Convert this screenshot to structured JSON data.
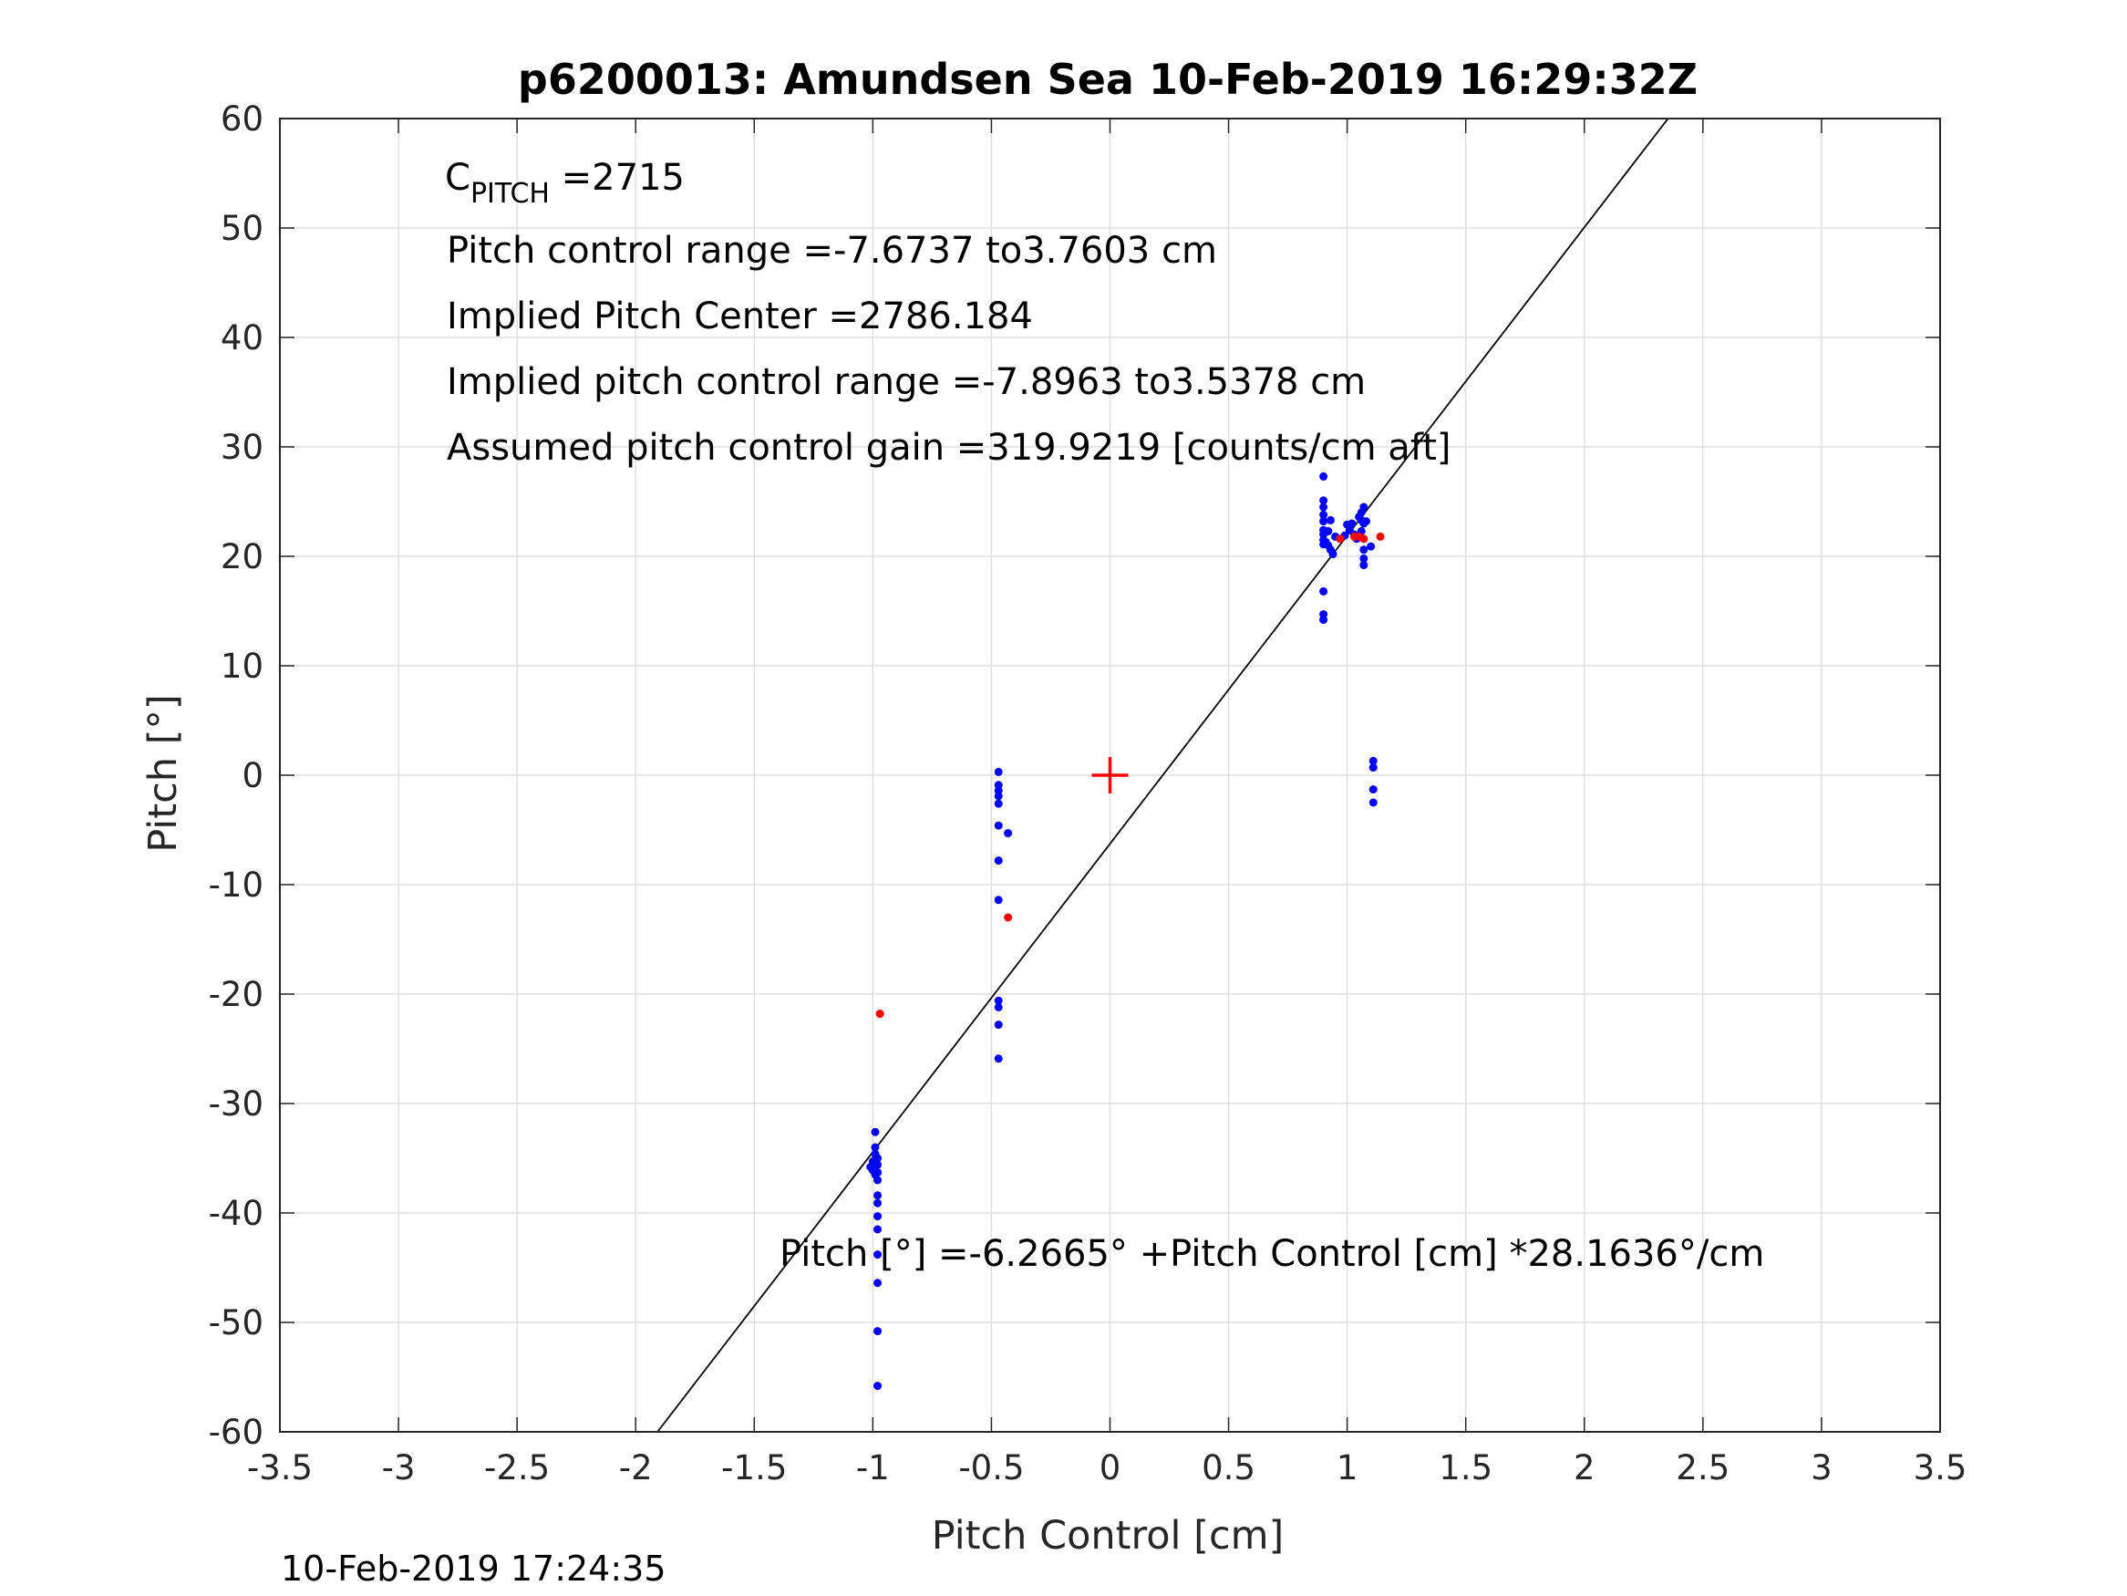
{
  "chart_data": {
    "type": "scatter",
    "title": "p6200013: Amundsen Sea 10-Feb-2019 16:29:32Z",
    "xlabel": "Pitch Control [cm]",
    "ylabel": "Pitch [°]",
    "xlim": [
      -3.5,
      3.5
    ],
    "ylim": [
      -60,
      60
    ],
    "xticks": [
      -3.5,
      -3,
      -2.5,
      -2,
      -1.5,
      -1,
      -0.5,
      0,
      0.5,
      1,
      1.5,
      2,
      2.5,
      3,
      3.5
    ],
    "xtick_labels": [
      "-3.5",
      "-3",
      "-2.5",
      "-2",
      "-1.5",
      "-1",
      "-0.5",
      "0",
      "0.5",
      "1",
      "1.5",
      "2",
      "2.5",
      "3",
      "3.5"
    ],
    "yticks": [
      -60,
      -50,
      -40,
      -30,
      -20,
      -10,
      0,
      10,
      20,
      30,
      40,
      50,
      60
    ],
    "ytick_labels": [
      "-60",
      "-50",
      "-40",
      "-30",
      "-20",
      "-10",
      "0",
      "10",
      "20",
      "30",
      "40",
      "50",
      "60"
    ],
    "grid": true,
    "annotations": {
      "c_pitch_main": "C",
      "c_pitch_sub": "PITCH",
      "c_pitch_value": " =2715",
      "line1": "Pitch control range =-7.6737 to3.7603 cm",
      "line2": "Implied Pitch Center =2786.184",
      "line3": "Implied pitch control range =-7.8963 to3.5378 cm",
      "line4": "Assumed pitch control gain =319.9219 [counts/cm aft]",
      "fit_equation": "Pitch [°] =-6.2665° +Pitch Control [cm] *28.1636°/cm"
    },
    "fit_line": {
      "intercept": -6.2665,
      "slope": 28.1636,
      "color": "#000000"
    },
    "center_marker": {
      "x": 0,
      "y": 0,
      "color": "#ff0000"
    },
    "series": [
      {
        "color": "#0000ff",
        "points": [
          [
            -0.99,
            -32.6
          ],
          [
            -0.99,
            -34.0
          ],
          [
            -0.99,
            -34.6
          ],
          [
            -0.99,
            -35.1
          ],
          [
            -1.0,
            -35.3
          ],
          [
            -1.0,
            -35.6
          ],
          [
            -1.0,
            -35.9
          ],
          [
            -1.0,
            -36.1
          ],
          [
            -0.98,
            -35.0
          ],
          [
            -0.98,
            -35.6
          ],
          [
            -0.98,
            -36.3
          ],
          [
            -0.98,
            -37.0
          ],
          [
            -1.01,
            -35.8
          ],
          [
            -0.99,
            -36.5
          ],
          [
            -0.98,
            -38.4
          ],
          [
            -0.98,
            -39.1
          ],
          [
            -0.98,
            -40.3
          ],
          [
            -0.98,
            -41.5
          ],
          [
            -0.98,
            -43.8
          ],
          [
            -0.98,
            -46.4
          ],
          [
            -0.98,
            -50.8
          ],
          [
            -0.98,
            -55.8
          ],
          [
            -0.47,
            0.3
          ],
          [
            -0.47,
            -0.9
          ],
          [
            -0.47,
            -1.4
          ],
          [
            -0.47,
            -1.9
          ],
          [
            -0.47,
            -2.6
          ],
          [
            -0.47,
            -4.6
          ],
          [
            -0.43,
            -5.3
          ],
          [
            -0.47,
            -7.8
          ],
          [
            -0.47,
            -11.4
          ],
          [
            -0.47,
            -20.6
          ],
          [
            -0.47,
            -21.2
          ],
          [
            -0.47,
            -22.8
          ],
          [
            -0.47,
            -25.9
          ],
          [
            0.9,
            27.3
          ],
          [
            0.9,
            25.1
          ],
          [
            0.9,
            24.5
          ],
          [
            0.9,
            23.8
          ],
          [
            0.9,
            23.2
          ],
          [
            0.9,
            22.4
          ],
          [
            0.9,
            22.0
          ],
          [
            0.9,
            21.5
          ],
          [
            0.9,
            21.1
          ],
          [
            0.91,
            21.3
          ],
          [
            0.92,
            21.0
          ],
          [
            0.92,
            22.3
          ],
          [
            0.93,
            23.3
          ],
          [
            0.93,
            20.6
          ],
          [
            0.94,
            20.2
          ],
          [
            0.95,
            21.8
          ],
          [
            0.9,
            16.8
          ],
          [
            0.9,
            14.7
          ],
          [
            0.9,
            14.2
          ],
          [
            0.99,
            21.9
          ],
          [
            1.0,
            22.9
          ],
          [
            1.01,
            22.4
          ],
          [
            1.02,
            23.0
          ],
          [
            1.03,
            22.0
          ],
          [
            1.04,
            21.6
          ],
          [
            1.05,
            23.6
          ],
          [
            1.06,
            24.0
          ],
          [
            1.06,
            23.3
          ],
          [
            1.07,
            24.5
          ],
          [
            1.07,
            23.0
          ],
          [
            1.06,
            22.3
          ],
          [
            1.08,
            23.2
          ],
          [
            1.07,
            20.6
          ],
          [
            1.07,
            19.8
          ],
          [
            1.07,
            19.2
          ],
          [
            1.1,
            20.9
          ],
          [
            1.11,
            1.3
          ],
          [
            1.11,
            0.7
          ],
          [
            1.11,
            -1.3
          ],
          [
            1.11,
            -2.5
          ]
        ]
      },
      {
        "color": "#ff0000",
        "points": [
          [
            -0.97,
            -21.8
          ],
          [
            -0.43,
            -13.0
          ],
          [
            0.97,
            21.6
          ],
          [
            1.03,
            21.8
          ],
          [
            1.05,
            21.8
          ],
          [
            1.07,
            21.6
          ],
          [
            1.14,
            21.8
          ]
        ]
      }
    ]
  },
  "footer": {
    "timestamp": "10-Feb-2019 17:24:35"
  }
}
